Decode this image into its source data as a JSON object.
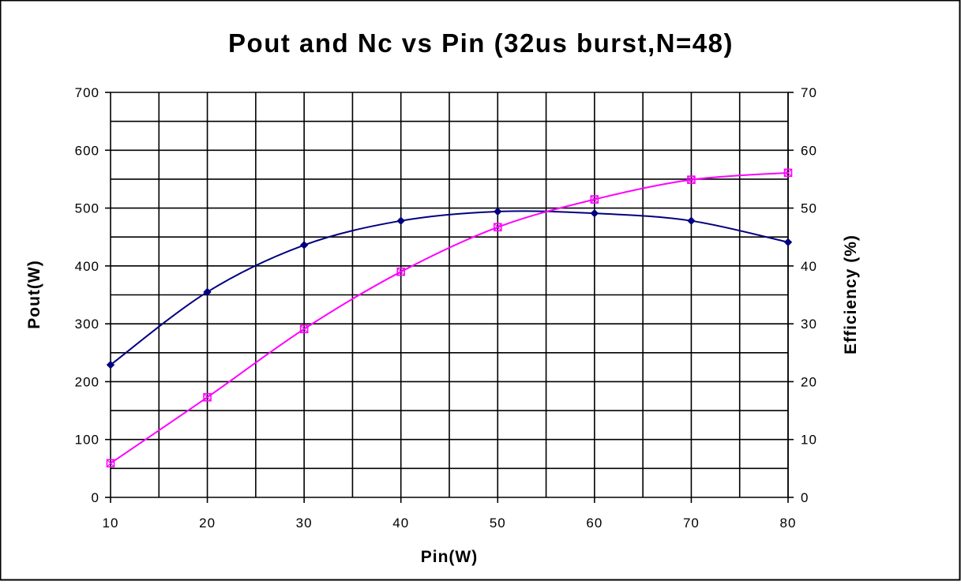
{
  "chart_data": {
    "type": "line",
    "title": "Pout and Nc vs Pin (32us burst,N=48)",
    "xlabel": "Pin(W)",
    "ylabel": "Pout(W)",
    "y2label": "Efficiency (%)",
    "xlim": [
      10,
      80
    ],
    "ylim": [
      0,
      700
    ],
    "y2lim": [
      0,
      70
    ],
    "x_ticks": [
      "10",
      "20",
      "30",
      "40",
      "50",
      "60",
      "70",
      "80"
    ],
    "y_ticks": [
      "0",
      "100",
      "200",
      "300",
      "400",
      "500",
      "600",
      "700"
    ],
    "y2_ticks": [
      "0",
      "10",
      "20",
      "30",
      "40",
      "50",
      "60",
      "70"
    ],
    "grid": true,
    "x_minor_step": 5,
    "y_minor_step": 50,
    "series": [
      {
        "axis": "left",
        "color": "#000080",
        "marker": "diamond",
        "x": [
          10,
          20,
          30,
          40,
          50,
          60,
          70,
          80
        ],
        "values": [
          229,
          355,
          436,
          478,
          494,
          491,
          478,
          441
        ]
      },
      {
        "axis": "right",
        "color": "#ff00ff",
        "marker": "square",
        "x": [
          10,
          20,
          30,
          40,
          50,
          60,
          70,
          80
        ],
        "values": [
          5.9,
          17.3,
          29.1,
          39,
          46.7,
          51.5,
          54.9,
          56.1
        ]
      }
    ]
  }
}
